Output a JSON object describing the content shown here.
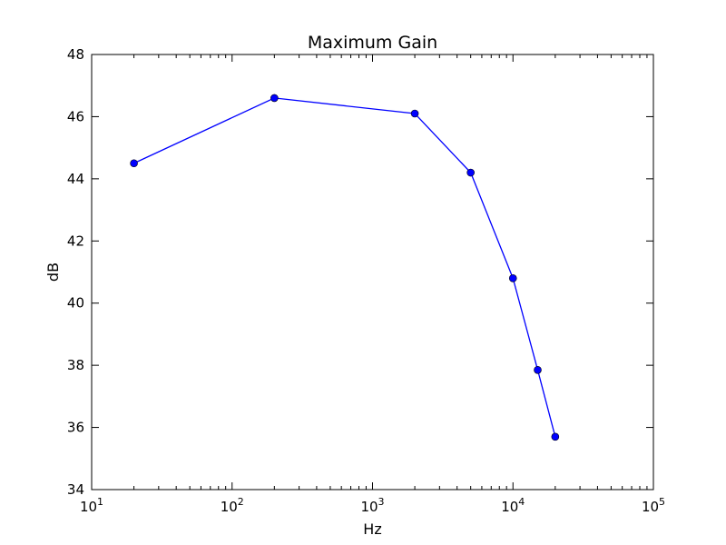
{
  "chart_data": {
    "type": "line",
    "title": "Maximum Gain",
    "xlabel": "Hz",
    "ylabel": "dB",
    "x_scale": "log",
    "xlim": [
      10,
      100000
    ],
    "ylim": [
      34,
      48
    ],
    "x_ticks": [
      {
        "value": 10,
        "base": "10",
        "exp": "1"
      },
      {
        "value": 100,
        "base": "10",
        "exp": "2"
      },
      {
        "value": 1000,
        "base": "10",
        "exp": "3"
      },
      {
        "value": 10000,
        "base": "10",
        "exp": "4"
      },
      {
        "value": 100000,
        "base": "10",
        "exp": "5"
      }
    ],
    "y_ticks": [
      34,
      36,
      38,
      40,
      42,
      44,
      46,
      48
    ],
    "y_tick_labels": [
      "34",
      "36",
      "38",
      "40",
      "42",
      "44",
      "46",
      "48"
    ],
    "grid": false,
    "series": [
      {
        "color": "#0000ff",
        "marker": "circle",
        "x": [
          20,
          200,
          2000,
          5000,
          10000,
          15000,
          20000
        ],
        "y": [
          44.5,
          46.6,
          46.1,
          44.2,
          40.8,
          37.85,
          35.7
        ]
      }
    ]
  }
}
